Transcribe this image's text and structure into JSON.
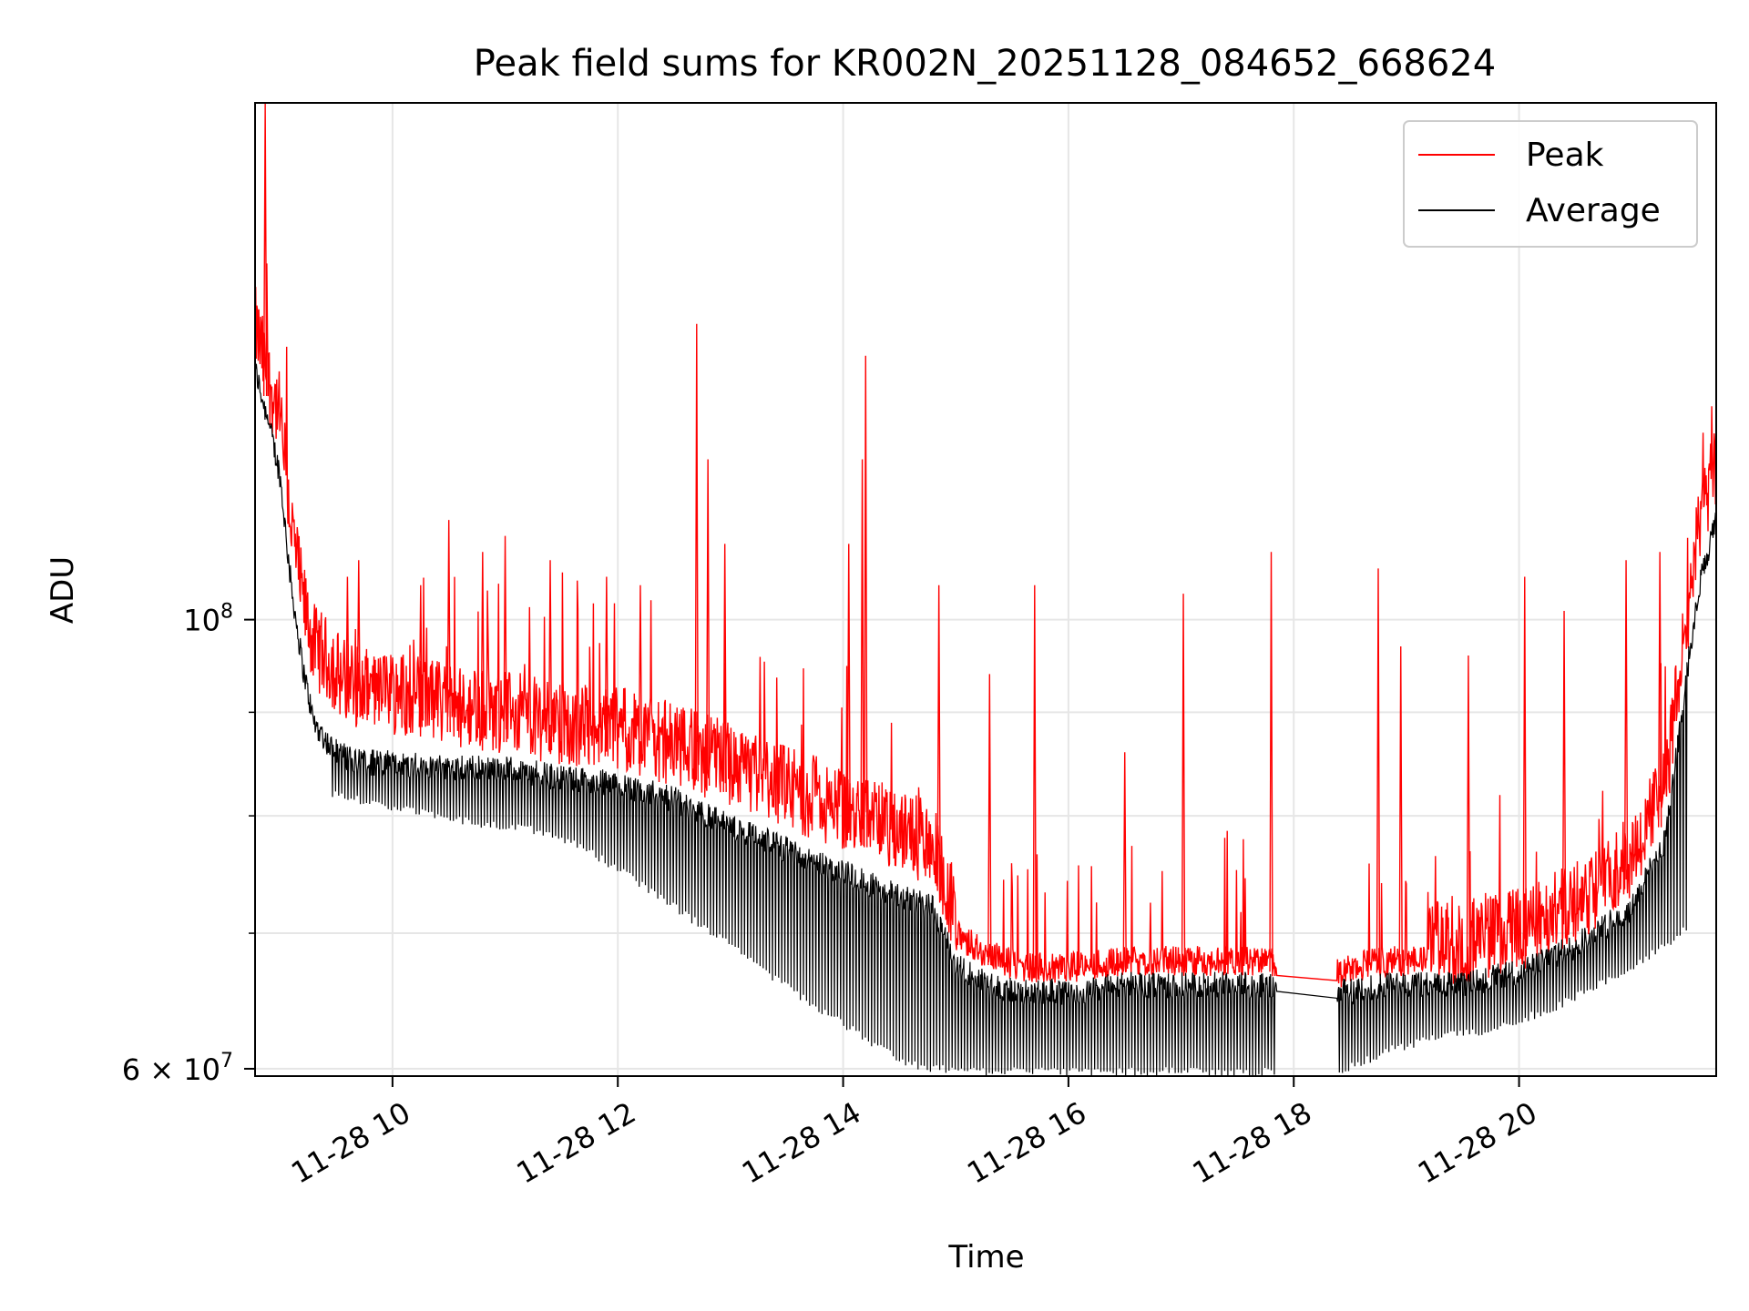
{
  "chart_data": {
    "type": "line",
    "title": "Peak field sums for KR002N_20251128_084652_668624",
    "xlabel": "Time",
    "ylabel": "ADU",
    "yscale": "log",
    "xlim_hours": [
      8.78,
      21.75
    ],
    "ylim": [
      59500000,
      180000000
    ],
    "x_ticks": [
      {
        "value": 10,
        "label": "11-28 10"
      },
      {
        "value": 12,
        "label": "11-28 12"
      },
      {
        "value": 14,
        "label": "11-28 14"
      },
      {
        "value": 16,
        "label": "11-28 16"
      },
      {
        "value": 18,
        "label": "11-28 18"
      },
      {
        "value": 20,
        "label": "11-28 20"
      }
    ],
    "y_ticks": [
      {
        "value": 100000000,
        "label_base": "10",
        "label_exp": "8"
      },
      {
        "value": 60000000,
        "label_base": "6 × 10",
        "label_exp": "7"
      }
    ],
    "y_minor_ticks": [
      70000000,
      80000000,
      90000000
    ],
    "grid": true,
    "legend_position": "top-right",
    "series": [
      {
        "name": "Peak",
        "color": "#ff0000",
        "x": [
          8.78,
          8.9,
          9.0,
          9.1,
          9.2,
          9.3,
          9.45,
          9.6,
          9.8,
          10.0,
          10.5,
          11.0,
          11.5,
          12.0,
          12.5,
          13.0,
          13.5,
          14.0,
          14.5,
          14.8,
          15.0,
          15.3,
          15.6,
          16.0,
          16.5,
          17.0,
          17.5,
          17.82,
          18.38,
          18.5,
          18.8,
          19.0,
          19.5,
          20.0,
          20.5,
          21.0,
          21.3,
          21.5,
          21.6,
          21.75
        ],
        "values": [
          135000000,
          127000000,
          122000000,
          108000000,
          99000000,
          94000000,
          92000000,
          90000000,
          89000000,
          89000000,
          88000000,
          87000000,
          86000000,
          85500000,
          84000000,
          82000000,
          80000000,
          78000000,
          76000000,
          75000000,
          69000000,
          67500000,
          66500000,
          66500000,
          67000000,
          67000000,
          67000000,
          67000000,
          66000000,
          66500000,
          67000000,
          67000000,
          67000000,
          68000000,
          70000000,
          74000000,
          80000000,
          98000000,
          108000000,
          115000000
        ],
        "spikes": [
          {
            "x": 8.87,
            "value": 180000000
          },
          {
            "x": 9.6,
            "value": 105000000
          },
          {
            "x": 9.7,
            "value": 107000000
          },
          {
            "x": 10.25,
            "value": 104000000
          },
          {
            "x": 10.5,
            "value": 112000000
          },
          {
            "x": 10.8,
            "value": 108000000
          },
          {
            "x": 11.0,
            "value": 110000000
          },
          {
            "x": 11.4,
            "value": 107000000
          },
          {
            "x": 11.9,
            "value": 105000000
          },
          {
            "x": 12.2,
            "value": 104000000
          },
          {
            "x": 12.7,
            "value": 140000000
          },
          {
            "x": 12.8,
            "value": 120000000
          },
          {
            "x": 12.95,
            "value": 109000000
          },
          {
            "x": 14.05,
            "value": 109000000
          },
          {
            "x": 14.17,
            "value": 120000000
          },
          {
            "x": 14.2,
            "value": 135000000
          },
          {
            "x": 14.85,
            "value": 104000000
          },
          {
            "x": 15.3,
            "value": 94000000
          },
          {
            "x": 15.7,
            "value": 104000000
          },
          {
            "x": 16.5,
            "value": 86000000
          },
          {
            "x": 17.02,
            "value": 103000000
          },
          {
            "x": 17.8,
            "value": 108000000
          },
          {
            "x": 18.75,
            "value": 106000000
          },
          {
            "x": 18.95,
            "value": 97000000
          },
          {
            "x": 19.55,
            "value": 96000000
          },
          {
            "x": 20.05,
            "value": 105000000
          },
          {
            "x": 20.4,
            "value": 101000000
          },
          {
            "x": 20.95,
            "value": 107000000
          },
          {
            "x": 21.25,
            "value": 108000000
          }
        ]
      },
      {
        "name": "Average",
        "color": "#000000",
        "x": [
          8.78,
          8.9,
          9.0,
          9.1,
          9.2,
          9.3,
          9.45,
          9.6,
          9.8,
          10.0,
          10.5,
          11.0,
          11.5,
          12.0,
          12.5,
          13.0,
          13.5,
          14.0,
          14.5,
          14.8,
          15.0,
          15.3,
          15.6,
          16.0,
          16.5,
          17.0,
          17.5,
          17.82,
          18.38,
          18.5,
          18.8,
          19.0,
          19.5,
          20.0,
          20.5,
          21.0,
          21.3,
          21.5,
          21.6,
          21.75
        ],
        "values": [
          133000000,
          125000000,
          118000000,
          104000000,
          95000000,
          89000000,
          86500000,
          85500000,
          85000000,
          85000000,
          84500000,
          84500000,
          83500000,
          83000000,
          81500000,
          79000000,
          77000000,
          75000000,
          73000000,
          72000000,
          67500000,
          66000000,
          65500000,
          65500000,
          66000000,
          66000000,
          66000000,
          66000000,
          65500000,
          65500000,
          66000000,
          66000000,
          66000000,
          67000000,
          69000000,
          72000000,
          78000000,
          95000000,
          104000000,
          112000000
        ],
        "troughs": [
          82000000,
          82000000,
          81000000,
          80000000,
          79000000,
          78500000,
          77000000,
          74000000,
          71000000,
          68000000,
          65000000,
          62500000,
          60000000,
          59500000,
          59500000,
          59500000,
          59500000,
          59500000,
          59500000,
          59500000,
          59500000,
          61000000,
          62000000,
          62500000,
          64000000,
          66000000,
          68500000,
          72000000
        ]
      }
    ]
  }
}
